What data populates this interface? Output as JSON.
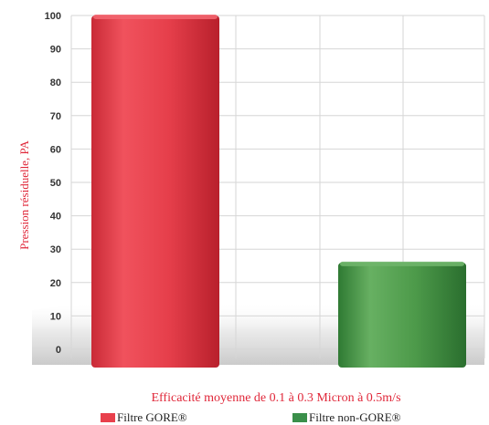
{
  "chart_data": {
    "type": "bar",
    "categories": [
      "Filtre GORE®",
      "Filtre non-GORE®"
    ],
    "values": [
      100,
      26
    ],
    "colors": [
      "#e8404c",
      "#4d9a4a"
    ],
    "xlabel": "Efficacité moyenne de 0.1 à 0.3 Micron à 0.5m/s",
    "ylabel": "Pression résiduelle, PA",
    "ylim": [
      0,
      100
    ],
    "yticks": [
      0,
      10,
      20,
      30,
      40,
      50,
      60,
      70,
      80,
      90,
      100
    ],
    "grid": true,
    "legend": {
      "placement": "bottom",
      "items": [
        {
          "label": "Filtre GORE®",
          "color": "#e8404c"
        },
        {
          "label": "Filtre non-GORE®",
          "color": "#3a8f4a"
        }
      ]
    }
  }
}
